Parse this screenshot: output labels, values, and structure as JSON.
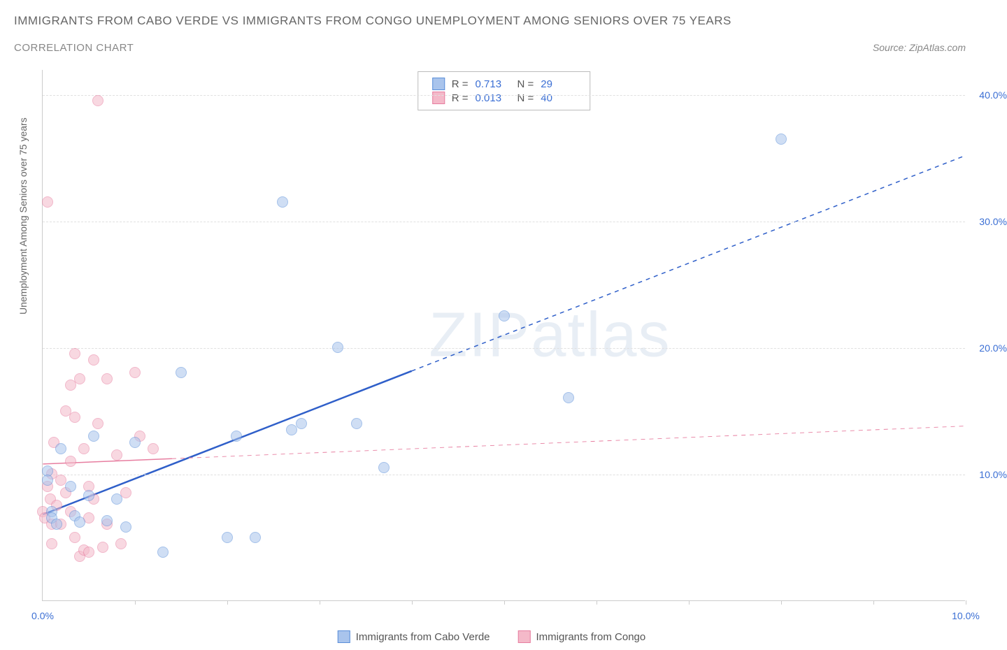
{
  "title": "IMMIGRANTS FROM CABO VERDE VS IMMIGRANTS FROM CONGO UNEMPLOYMENT AMONG SENIORS OVER 75 YEARS",
  "subtitle": "CORRELATION CHART",
  "source_label": "Source:",
  "source_name": "ZipAtlas.com",
  "watermark": "ZIPatlas",
  "y_axis_label": "Unemployment Among Seniors over 75 years",
  "chart": {
    "type": "scatter",
    "xlim": [
      0,
      10
    ],
    "ylim": [
      0,
      42
    ],
    "x_ticks": [
      0,
      1,
      2,
      3,
      4,
      5,
      6,
      7,
      8,
      9,
      10
    ],
    "x_tick_labels": [
      "0.0%",
      "",
      "",
      "",
      "",
      "",
      "",
      "",
      "",
      "",
      "10.0%"
    ],
    "y_ticks": [
      10,
      20,
      30,
      40
    ],
    "y_tick_labels": [
      "10.0%",
      "20.0%",
      "30.0%",
      "40.0%"
    ],
    "background_color": "#ffffff",
    "grid_color": "#e0e0e0",
    "axis_color": "#cccccc",
    "tick_label_color": "#3b6fd4",
    "marker_size": 16,
    "marker_opacity": 0.55,
    "series": [
      {
        "name": "Immigrants from Cabo Verde",
        "color_fill": "#a9c4ec",
        "color_stroke": "#5b8fd9",
        "R": "0.713",
        "N": "29",
        "trend": {
          "x1": 0.0,
          "y1": 6.8,
          "x2": 10.0,
          "y2": 35.2,
          "solid_until_x": 4.0,
          "color": "#2f5fc9",
          "width": 2.5
        },
        "points": [
          [
            0.05,
            10.2
          ],
          [
            0.05,
            9.5
          ],
          [
            0.1,
            7.0
          ],
          [
            0.1,
            6.5
          ],
          [
            0.15,
            6.0
          ],
          [
            0.2,
            12.0
          ],
          [
            0.3,
            9.0
          ],
          [
            0.35,
            6.7
          ],
          [
            0.4,
            6.2
          ],
          [
            0.5,
            8.3
          ],
          [
            0.55,
            13.0
          ],
          [
            0.7,
            6.3
          ],
          [
            0.8,
            8.0
          ],
          [
            0.9,
            5.8
          ],
          [
            1.0,
            12.5
          ],
          [
            1.3,
            3.8
          ],
          [
            1.5,
            18.0
          ],
          [
            2.0,
            5.0
          ],
          [
            2.1,
            13.0
          ],
          [
            2.3,
            5.0
          ],
          [
            2.6,
            31.5
          ],
          [
            2.7,
            13.5
          ],
          [
            2.8,
            14.0
          ],
          [
            3.2,
            20.0
          ],
          [
            3.4,
            14.0
          ],
          [
            3.7,
            10.5
          ],
          [
            5.0,
            22.5
          ],
          [
            5.7,
            16.0
          ],
          [
            8.0,
            36.5
          ]
        ]
      },
      {
        "name": "Immigrants from Congo",
        "color_fill": "#f4b9c9",
        "color_stroke": "#e77ea0",
        "R": "0.013",
        "N": "40",
        "trend": {
          "x1": 0.0,
          "y1": 10.8,
          "x2": 10.0,
          "y2": 13.8,
          "solid_until_x": 1.4,
          "color": "#e77ea0",
          "width": 1.5
        },
        "points": [
          [
            0.0,
            7.0
          ],
          [
            0.02,
            6.5
          ],
          [
            0.05,
            9.0
          ],
          [
            0.05,
            31.5
          ],
          [
            0.08,
            8.0
          ],
          [
            0.1,
            10.0
          ],
          [
            0.1,
            6.0
          ],
          [
            0.1,
            4.5
          ],
          [
            0.12,
            12.5
          ],
          [
            0.15,
            7.5
          ],
          [
            0.2,
            9.5
          ],
          [
            0.2,
            6.0
          ],
          [
            0.25,
            15.0
          ],
          [
            0.25,
            8.5
          ],
          [
            0.3,
            17.0
          ],
          [
            0.3,
            11.0
          ],
          [
            0.3,
            7.0
          ],
          [
            0.35,
            19.5
          ],
          [
            0.35,
            14.5
          ],
          [
            0.35,
            5.0
          ],
          [
            0.4,
            17.5
          ],
          [
            0.4,
            3.5
          ],
          [
            0.45,
            12.0
          ],
          [
            0.45,
            4.0
          ],
          [
            0.5,
            9.0
          ],
          [
            0.5,
            6.5
          ],
          [
            0.5,
            3.8
          ],
          [
            0.55,
            19.0
          ],
          [
            0.55,
            8.0
          ],
          [
            0.6,
            39.5
          ],
          [
            0.6,
            14.0
          ],
          [
            0.65,
            4.2
          ],
          [
            0.7,
            17.5
          ],
          [
            0.7,
            6.0
          ],
          [
            0.8,
            11.5
          ],
          [
            0.85,
            4.5
          ],
          [
            0.9,
            8.5
          ],
          [
            1.0,
            18.0
          ],
          [
            1.05,
            13.0
          ],
          [
            1.2,
            12.0
          ]
        ]
      }
    ]
  },
  "legend": {
    "items": [
      {
        "label": "Immigrants from Cabo Verde",
        "fill": "#a9c4ec",
        "stroke": "#5b8fd9"
      },
      {
        "label": "Immigrants from Congo",
        "fill": "#f4b9c9",
        "stroke": "#e77ea0"
      }
    ]
  }
}
